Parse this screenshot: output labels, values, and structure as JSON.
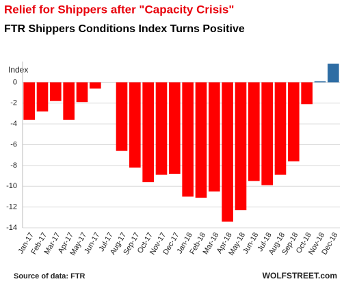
{
  "chart_data": {
    "type": "bar",
    "title": "Relief for Shippers after \"Capacity Crisis\"",
    "subtitle": "FTR Shippers Conditions  Index Turns Positive",
    "y_label": "Index",
    "source": "Source of data: FTR",
    "watermark": "WOLFSTREET.com",
    "categories": [
      "Jan-17",
      "Feb-17",
      "Mar-17",
      "Apr-17",
      "May-17",
      "Jun-17",
      "Jul-17",
      "Aug-17",
      "Sep-17",
      "Oct-17",
      "Nov-17",
      "Dec-17",
      "Jan-18",
      "Feb-18",
      "Mar-18",
      "Apr-18",
      "May-18",
      "Jun-18",
      "Jul-18",
      "Aug-18",
      "Sep-18",
      "Oct-18",
      "Nov-18",
      "Dec-18"
    ],
    "values": [
      -3.6,
      -2.8,
      -1.8,
      -3.6,
      -1.9,
      -0.6,
      0,
      -6.6,
      -8.2,
      -9.6,
      -8.9,
      -8.8,
      -11.0,
      -11.1,
      -10.5,
      -13.4,
      -12.3,
      -9.5,
      -9.9,
      -8.9,
      -7.6,
      -2.1,
      0.1,
      1.8
    ],
    "colors": [
      "#ff0000",
      "#ff0000",
      "#ff0000",
      "#ff0000",
      "#ff0000",
      "#ff0000",
      "#ff0000",
      "#ff0000",
      "#ff0000",
      "#ff0000",
      "#ff0000",
      "#ff0000",
      "#ff0000",
      "#ff0000",
      "#ff0000",
      "#ff0000",
      "#ff0000",
      "#ff0000",
      "#ff0000",
      "#ff0000",
      "#ff0000",
      "#ff0000",
      "#2e6da4",
      "#2e6da4"
    ],
    "ylim": [
      -14,
      2
    ],
    "yticks": [
      0,
      -2,
      -4,
      -6,
      -8,
      -10,
      -12,
      -14
    ],
    "grid": true
  }
}
